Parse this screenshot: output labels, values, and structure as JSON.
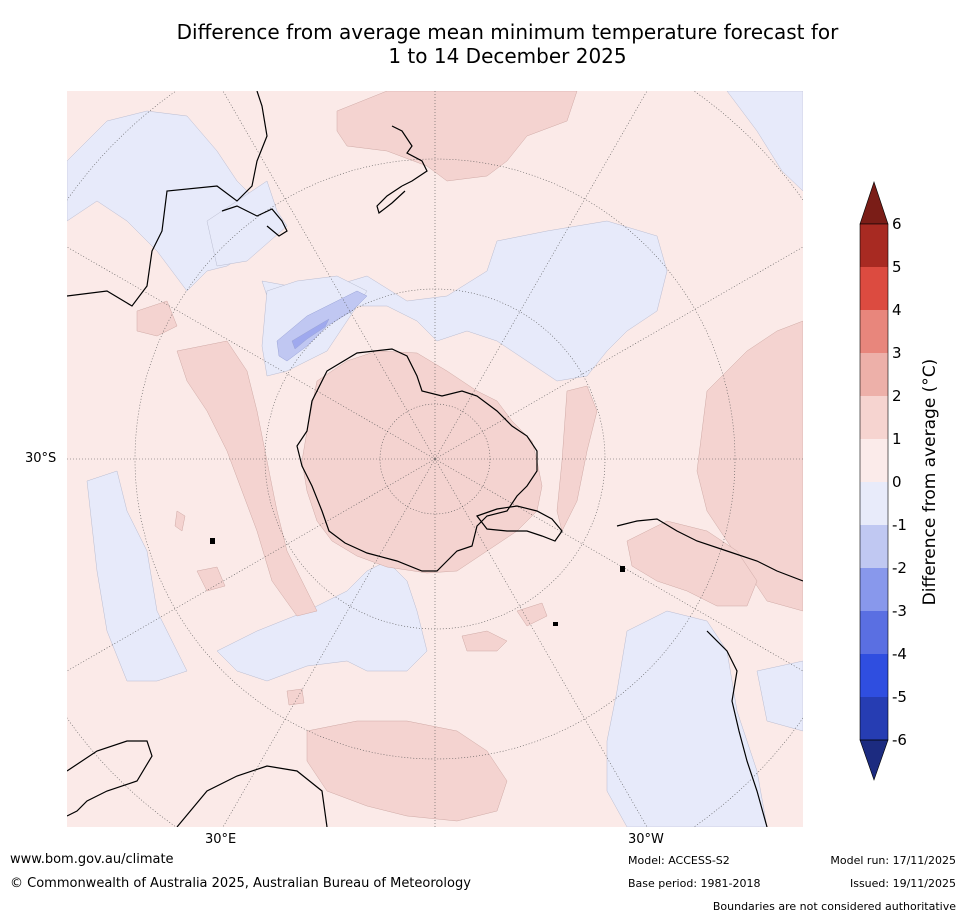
{
  "title": {
    "line1": "Difference from average mean minimum temperature forecast for",
    "line2": "1 to 14 December 2025"
  },
  "map": {
    "label_lat": "30°S",
    "label_lon_east": "30°E",
    "label_lon_west": "30°W",
    "colors": {
      "ocean_light_warm": "#fbeae8",
      "warm_1_2": "#f4d3d0",
      "cool_0_1": "#e7eafa",
      "cool_1_2": "#c0c7f2",
      "coast": "#000000"
    }
  },
  "legend": {
    "label": "Difference from average (°C)",
    "ticks": [
      "6",
      "5",
      "4",
      "3",
      "2",
      "1",
      "0",
      "-1",
      "-2",
      "-3",
      "-4",
      "-5",
      "-6"
    ],
    "colors": [
      "#a82a22",
      "#dc4b40",
      "#e8867c",
      "#edb0a9",
      "#f6d4d0",
      "#fbebea",
      "#e8ebfa",
      "#c0c8f2",
      "#8898ec",
      "#5a6fe2",
      "#2f4ee0",
      "#263db3"
    ],
    "over_color": "#7a1d17",
    "under_color": "#1c2b80"
  },
  "footer": {
    "website": "www.bom.gov.au/climate",
    "copyright": "© Commonwealth of Australia 2025, Australian Bureau of Meteorology",
    "model": "Model: ACCESS-S2",
    "base_period": "Base period: 1981-2018",
    "model_run": "Model run: 17/11/2025",
    "issued": "Issued: 19/11/2025",
    "disclaimer": "Boundaries are not considered authoritative"
  }
}
